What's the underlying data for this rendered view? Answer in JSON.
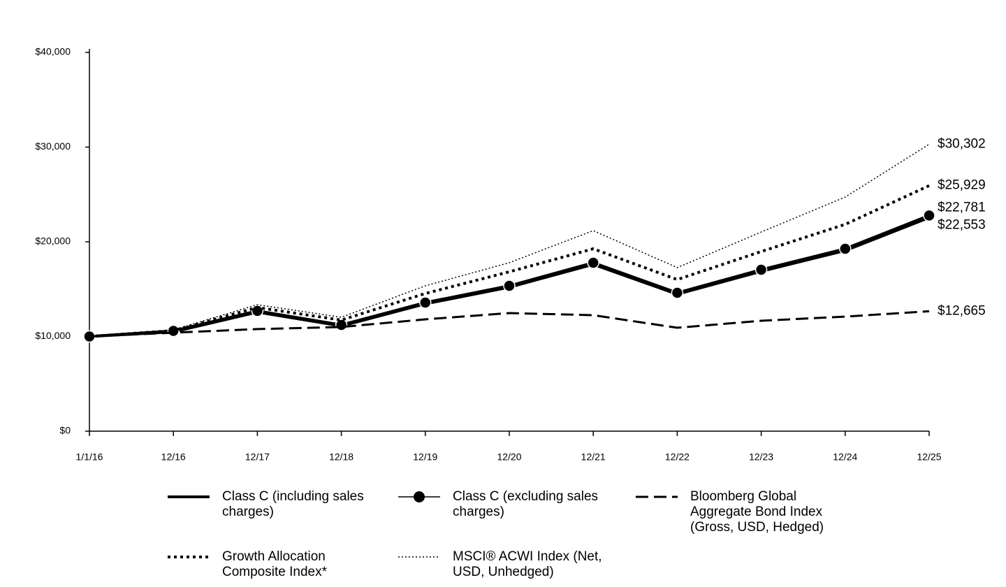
{
  "chart_data": {
    "type": "line",
    "categories": [
      "1/1/16",
      "12/16",
      "12/17",
      "12/18",
      "12/19",
      "12/20",
      "12/21",
      "12/22",
      "12/23",
      "12/24",
      "12/25"
    ],
    "ylim": [
      0,
      40000
    ],
    "yticks": [
      {
        "value": 0,
        "label": "$0"
      },
      {
        "value": 10000,
        "label": "$10,000"
      },
      {
        "value": 20000,
        "label": "$20,000"
      },
      {
        "value": 30000,
        "label": "$30,000"
      },
      {
        "value": 40000,
        "label": "$40,000"
      }
    ],
    "grid": false,
    "series": [
      {
        "name": "Class C (including sales charges)",
        "color": "#000000",
        "style": "solid",
        "marker": false,
        "values": [
          10000,
          10484,
          12573,
          11108,
          13444,
          15197,
          17612,
          14464,
          16880,
          19067,
          22553
        ],
        "value_labels": [
          null,
          null,
          null,
          null,
          null,
          null,
          null,
          null,
          null,
          null,
          "$22,553"
        ]
      },
      {
        "name": "Class C (excluding sales charges)",
        "color": "#000000",
        "style": "solid",
        "marker": true,
        "values": [
          10000,
          10590,
          12700,
          11220,
          13580,
          15350,
          17790,
          14610,
          17050,
          19260,
          22781
        ],
        "value_labels": [
          null,
          null,
          null,
          null,
          null,
          null,
          null,
          null,
          null,
          null,
          "$22,781"
        ]
      },
      {
        "name": "Bloomberg Global Aggregate Bond Index (Gross, USD, Hedged)",
        "color": "#000000",
        "style": "dashed",
        "marker": false,
        "values": [
          10000,
          10400,
          10780,
          11000,
          11810,
          12470,
          12250,
          10920,
          11660,
          12100,
          12665
        ],
        "value_labels": [
          null,
          null,
          null,
          null,
          null,
          null,
          null,
          null,
          null,
          null,
          "$12,665"
        ]
      },
      {
        "name": "Growth Allocation Composite Index*",
        "color": "#000000",
        "style": "dotted",
        "marker": false,
        "values": [
          10000,
          10630,
          13060,
          11730,
          14540,
          16830,
          19260,
          16010,
          18970,
          21840,
          25929
        ],
        "value_labels": [
          null,
          null,
          null,
          null,
          null,
          null,
          null,
          null,
          null,
          null,
          "$25,929"
        ]
      },
      {
        "name": "MSCI® ACWI Index (Net, USD, Unhedged)",
        "color": "#000000",
        "style": "fine-dotted",
        "marker": false,
        "values": [
          10000,
          10700,
          13360,
          12030,
          15350,
          17790,
          21180,
          17270,
          21030,
          24720,
          30302
        ],
        "value_labels": [
          null,
          null,
          null,
          null,
          null,
          null,
          null,
          null,
          null,
          null,
          "$30,302"
        ]
      }
    ]
  }
}
